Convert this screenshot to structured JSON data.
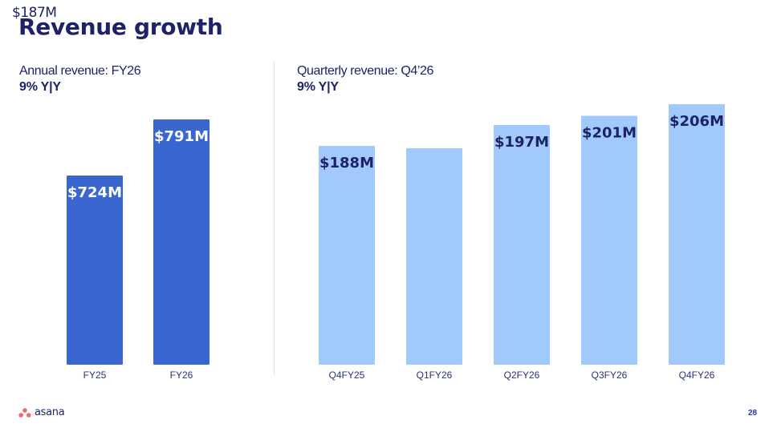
{
  "slide": {
    "title": "Revenue growth",
    "stray_label": "$187M",
    "page_number": "28",
    "logo_text": "asana"
  },
  "colors": {
    "annual_bar": "#3a66cf",
    "annual_label": "#ffffff",
    "quarterly_bar": "#a1c9fb",
    "quarterly_label": "#1e2266",
    "title": "#1e2266",
    "logo_dots": "#f06a6a"
  },
  "chart_data": [
    {
      "type": "bar",
      "title": "Annual revenue: FY26",
      "subtitle": "9% Y|Y",
      "categories": [
        "FY25",
        "FY26"
      ],
      "values": [
        724,
        791
      ],
      "data_labels": [
        "$724M",
        "$791M"
      ],
      "unit": "$M",
      "xlabel": "",
      "ylabel": "",
      "grid": false,
      "legend": "none"
    },
    {
      "type": "bar",
      "title": "Quarterly revenue: Q4’26",
      "subtitle": "9% Y|Y",
      "categories": [
        "Q4FY25",
        "Q1FY26",
        "Q2FY26",
        "Q3FY26",
        "Q4FY26"
      ],
      "values": [
        188,
        187,
        197,
        201,
        206
      ],
      "data_labels": [
        "$188M",
        "",
        "$197M",
        "$201M",
        "$206M"
      ],
      "unit": "$M",
      "xlabel": "",
      "ylabel": "",
      "grid": false,
      "legend": "none"
    }
  ]
}
